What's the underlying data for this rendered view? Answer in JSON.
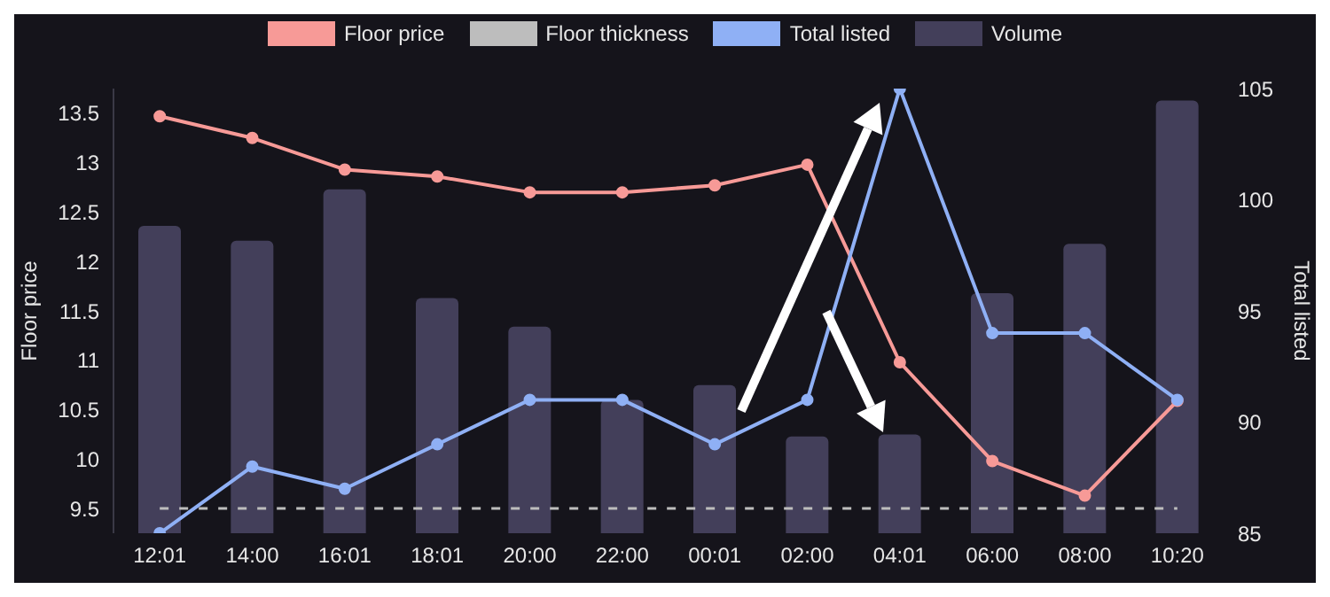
{
  "chart_data": {
    "type": "line",
    "categories": [
      "12:01",
      "14:00",
      "16:01",
      "18:01",
      "20:00",
      "22:00",
      "00:01",
      "02:00",
      "04:01",
      "06:00",
      "08:00",
      "10:20"
    ],
    "ylabel": "Floor price",
    "y2label": "Total listed",
    "ylim": [
      9.25,
      13.75
    ],
    "yticks": [
      9.5,
      10.0,
      10.5,
      11.0,
      11.5,
      12.0,
      12.5,
      13.0,
      13.5
    ],
    "y2lim": [
      85,
      105
    ],
    "y2ticks": [
      85,
      90,
      95,
      100,
      105
    ],
    "legend": "top",
    "marker": "circle",
    "series": [
      {
        "name": "Floor price",
        "color": "#f79a97",
        "values": [
          13.47,
          13.25,
          12.93,
          12.86,
          12.7,
          12.7,
          12.77,
          12.98,
          10.98,
          9.98,
          9.63,
          10.59
        ]
      },
      {
        "name": "Floor thickness",
        "color": "#bdbdbd",
        "line_style": "dashed",
        "marker": "none",
        "values": [
          9.5,
          9.5,
          9.5,
          9.5,
          9.5,
          9.5,
          9.5,
          9.5,
          9.5,
          9.5,
          9.5,
          9.5
        ]
      },
      {
        "name": "Total listed",
        "axis": "y2",
        "color": "#8fb0f5",
        "values": [
          85,
          88,
          87,
          89,
          91,
          91,
          89,
          91,
          105,
          94,
          94,
          91
        ]
      },
      {
        "name": "Volume",
        "type": "bar",
        "color": "#433f5a",
        "values": [
          12.36,
          12.21,
          12.73,
          11.63,
          11.34,
          10.6,
          10.75,
          10.23,
          10.25,
          11.68,
          12.18,
          13.63
        ]
      }
    ]
  }
}
